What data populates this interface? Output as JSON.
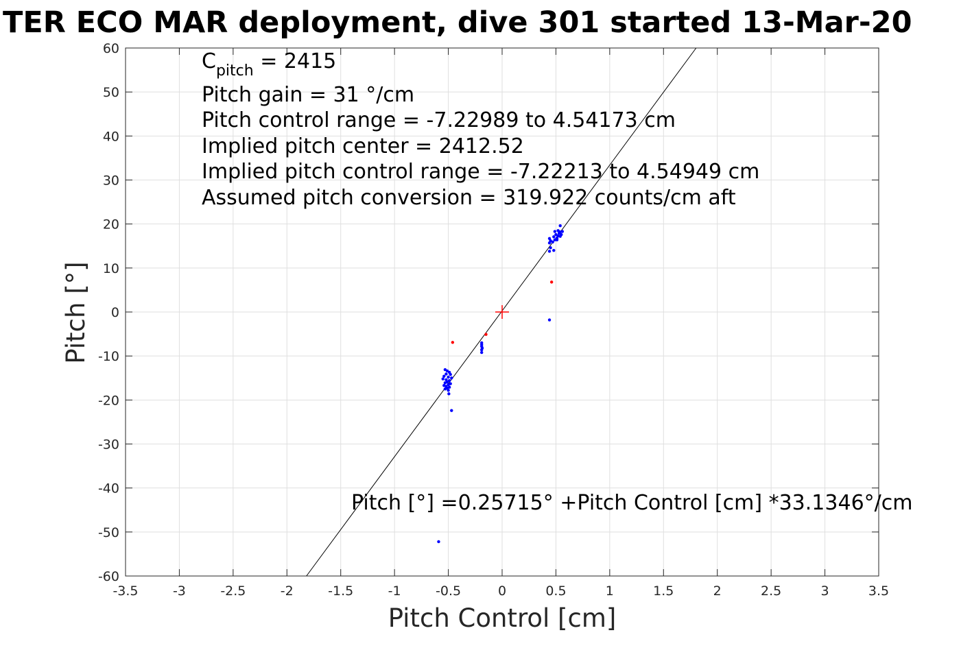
{
  "chart_data": {
    "type": "scatter",
    "title": "TER ECO MAR deployment, dive 301 started 13-Mar-20",
    "xlabel": "Pitch Control [cm]",
    "ylabel": "Pitch [°]",
    "xlim": [
      -3.5,
      3.5
    ],
    "ylim": [
      -60,
      60
    ],
    "xticks": [
      -3.5,
      -3,
      -2.5,
      -2,
      -1.5,
      -1,
      -0.5,
      0,
      0.5,
      1,
      1.5,
      2,
      2.5,
      3,
      3.5
    ],
    "xtick_labels": [
      "-3.5",
      "-3",
      "-2.5",
      "-2",
      "-1.5",
      "-1",
      "-0.5",
      "0",
      "0.5",
      "1",
      "1.5",
      "2",
      "2.5",
      "3",
      "3.5"
    ],
    "yticks": [
      60,
      50,
      40,
      30,
      20,
      10,
      0,
      -10,
      -20,
      -30,
      -40,
      -50,
      -60
    ],
    "ytick_labels": [
      "60",
      "50",
      "40",
      "30",
      "20",
      "10",
      "0",
      "-10",
      "-20",
      "-30",
      "-40",
      "-50",
      "-60"
    ],
    "grid": true,
    "annotations": {
      "c_pitch_main": "C",
      "c_pitch_sub": "pitch",
      "c_pitch_value": " = 2415",
      "pitch_gain": "Pitch gain = 31 °/cm",
      "control_range": "Pitch control range = -7.22989 to 4.54173 cm",
      "implied_center": "Implied pitch center = 2412.52",
      "implied_range": "Implied pitch control range = -7.22213 to 4.54949 cm",
      "conversion": "Assumed pitch conversion = 319.922 counts/cm aft",
      "fit_equation": "Pitch [°] =0.25715° +Pitch Control [cm] *33.1346°/cm"
    },
    "fit_line": {
      "intercept": 0.25715,
      "slope": 33.1346
    },
    "center_marker": {
      "x": 0,
      "y": 0
    },
    "series": [
      {
        "color": "#0000ff",
        "values": [
          [
            -0.53,
            -13.1
          ],
          [
            -0.51,
            -13.4
          ],
          [
            -0.49,
            -13.7
          ],
          [
            -0.52,
            -14.1
          ],
          [
            -0.48,
            -14.2
          ],
          [
            -0.54,
            -14.6
          ],
          [
            -0.5,
            -14.8
          ],
          [
            -0.47,
            -15.0
          ],
          [
            -0.55,
            -15.2
          ],
          [
            -0.52,
            -15.4
          ],
          [
            -0.49,
            -15.6
          ],
          [
            -0.51,
            -15.9
          ],
          [
            -0.53,
            -16.1
          ],
          [
            -0.48,
            -16.3
          ],
          [
            -0.5,
            -16.5
          ],
          [
            -0.54,
            -16.7
          ],
          [
            -0.52,
            -16.9
          ],
          [
            -0.49,
            -17.1
          ],
          [
            -0.51,
            -17.3
          ],
          [
            -0.53,
            -17.5
          ],
          [
            -0.5,
            -17.8
          ],
          [
            -0.495,
            -18.6
          ],
          [
            -0.47,
            -22.4
          ],
          [
            -0.59,
            -52.2
          ],
          [
            -0.19,
            -7.0
          ],
          [
            -0.19,
            -7.4
          ],
          [
            -0.19,
            -7.8
          ],
          [
            -0.185,
            -8.2
          ],
          [
            -0.19,
            -8.6
          ],
          [
            -0.19,
            -9.2
          ],
          [
            0.44,
            -1.8
          ],
          [
            0.44,
            13.8
          ],
          [
            0.48,
            14.0
          ],
          [
            0.45,
            14.6
          ],
          [
            0.44,
            15.7
          ],
          [
            0.45,
            16.2
          ],
          [
            0.44,
            16.7
          ],
          [
            0.47,
            15.9
          ],
          [
            0.49,
            16.4
          ],
          [
            0.51,
            16.8
          ],
          [
            0.48,
            17.1
          ],
          [
            0.52,
            17.3
          ],
          [
            0.5,
            17.6
          ],
          [
            0.53,
            17.9
          ],
          [
            0.55,
            17.6
          ],
          [
            0.54,
            18.2
          ],
          [
            0.49,
            18.3
          ],
          [
            0.52,
            18.5
          ],
          [
            0.54,
            17.2
          ],
          [
            0.56,
            18.3
          ],
          [
            0.54,
            19.6
          ],
          [
            0.51,
            16.4
          ]
        ]
      },
      {
        "color": "#ff0000",
        "values": [
          [
            -0.46,
            -6.9
          ],
          [
            -0.15,
            -5.1
          ],
          [
            0.46,
            6.8
          ]
        ]
      }
    ]
  }
}
